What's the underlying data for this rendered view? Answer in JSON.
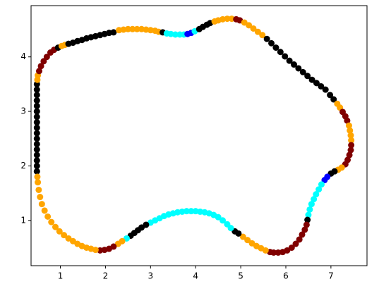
{
  "chart_data": {
    "type": "scatter",
    "xlim": [
      0.35,
      7.8
    ],
    "ylim": [
      0.17,
      4.94
    ],
    "xticks": [
      1,
      2,
      3,
      4,
      5,
      6,
      7
    ],
    "yticks": [
      1,
      2,
      3,
      4
    ],
    "series": [
      {
        "color": "#000000",
        "x": [
          0.48,
          0.48,
          0.48,
          0.48,
          0.48,
          0.48,
          0.48,
          0.48,
          0.48,
          0.48,
          0.48,
          0.48,
          0.48,
          0.48,
          0.48,
          0.48,
          0.48
        ],
        "values": [
          1.9,
          2.0,
          2.1,
          2.2,
          2.3,
          2.4,
          2.5,
          2.6,
          2.7,
          2.8,
          2.9,
          3.0,
          3.1,
          3.2,
          3.3,
          3.4,
          3.5
        ]
      },
      {
        "color": "#ffa500",
        "x": [
          0.49,
          0.5
        ],
        "values": [
          3.58,
          3.66
        ]
      },
      {
        "color": "#800000",
        "x": [
          0.53,
          0.57,
          0.63,
          0.7,
          0.78,
          0.86
        ],
        "values": [
          3.74,
          3.83,
          3.92,
          4.0,
          4.08,
          4.13
        ]
      },
      {
        "color": "#000000",
        "x": [
          0.95
        ],
        "values": [
          4.17
        ]
      },
      {
        "color": "#ffa500",
        "x": [
          1.03,
          1.1
        ],
        "values": [
          4.2,
          4.22
        ]
      },
      {
        "color": "#000000",
        "x": [
          1.18,
          1.28,
          1.38,
          1.48,
          1.58,
          1.68,
          1.78,
          1.88,
          1.98,
          2.08,
          2.18
        ],
        "values": [
          4.24,
          4.26,
          4.29,
          4.31,
          4.34,
          4.36,
          4.38,
          4.4,
          4.42,
          4.44,
          4.45
        ]
      },
      {
        "color": "#ffa500",
        "x": [
          2.3,
          2.4,
          2.5,
          2.6,
          2.7,
          2.8,
          2.9,
          3.0,
          3.1,
          3.18
        ],
        "values": [
          4.49,
          4.5,
          4.51,
          4.51,
          4.51,
          4.51,
          4.5,
          4.49,
          4.48,
          4.46
        ]
      },
      {
        "color": "#000000",
        "x": [
          3.27
        ],
        "values": [
          4.45
        ]
      },
      {
        "color": "#00ffff",
        "x": [
          3.36,
          3.45,
          3.55,
          3.65,
          3.74
        ],
        "values": [
          4.43,
          4.42,
          4.41,
          4.41,
          4.41
        ]
      },
      {
        "color": "#0000ff",
        "x": [
          3.82,
          3.9
        ],
        "values": [
          4.42,
          4.44
        ]
      },
      {
        "color": "#00ffff",
        "x": [
          3.98
        ],
        "values": [
          4.47
        ]
      },
      {
        "color": "#000000",
        "x": [
          4.08,
          4.16,
          4.25,
          4.32
        ],
        "values": [
          4.51,
          4.55,
          4.59,
          4.62
        ]
      },
      {
        "color": "#ffa500",
        "x": [
          4.42,
          4.5,
          4.6,
          4.7,
          4.8
        ],
        "values": [
          4.65,
          4.67,
          4.69,
          4.7,
          4.7
        ]
      },
      {
        "color": "#800000",
        "x": [
          4.9,
          4.98
        ],
        "values": [
          4.69,
          4.67
        ]
      },
      {
        "color": "#ffa500",
        "x": [
          5.08,
          5.18,
          5.28,
          5.38,
          5.48
        ],
        "values": [
          4.63,
          4.58,
          4.52,
          4.46,
          4.4
        ]
      },
      {
        "color": "#000000",
        "x": [
          5.58,
          5.68,
          5.78,
          5.88,
          5.98,
          6.08,
          6.18,
          6.28,
          6.38,
          6.48,
          6.58,
          6.68,
          6.78,
          6.88,
          6.98,
          7.06
        ],
        "values": [
          4.33,
          4.25,
          4.17,
          4.09,
          4.01,
          3.93,
          3.86,
          3.79,
          3.72,
          3.65,
          3.58,
          3.52,
          3.46,
          3.4,
          3.3,
          3.22
        ]
      },
      {
        "color": "#ffa500",
        "x": [
          7.14,
          7.2
        ],
        "values": [
          3.14,
          3.07
        ]
      },
      {
        "color": "#800000",
        "x": [
          7.26,
          7.32,
          7.36
        ],
        "values": [
          2.99,
          2.91,
          2.83
        ]
      },
      {
        "color": "#ffa500",
        "x": [
          7.4,
          7.42,
          7.44,
          7.45
        ],
        "values": [
          2.74,
          2.65,
          2.56,
          2.47
        ]
      },
      {
        "color": "#800000",
        "x": [
          7.45,
          7.44,
          7.41,
          7.37,
          7.32
        ],
        "values": [
          2.38,
          2.29,
          2.2,
          2.11,
          2.03
        ]
      },
      {
        "color": "#ffa500",
        "x": [
          7.24,
          7.16
        ],
        "values": [
          1.97,
          1.93
        ]
      },
      {
        "color": "#000000",
        "x": [
          7.08,
          7.0
        ],
        "values": [
          1.9,
          1.86
        ]
      },
      {
        "color": "#0000ff",
        "x": [
          6.92,
          6.86
        ],
        "values": [
          1.8,
          1.74
        ]
      },
      {
        "color": "#00ffff",
        "x": [
          6.79,
          6.73,
          6.67,
          6.62,
          6.57,
          6.53,
          6.5
        ],
        "values": [
          1.66,
          1.57,
          1.48,
          1.39,
          1.3,
          1.2,
          1.1
        ]
      },
      {
        "color": "#000000",
        "x": [
          6.48
        ],
        "values": [
          1.01
        ]
      },
      {
        "color": "#800000",
        "x": [
          6.46,
          6.42,
          6.36,
          6.3,
          6.22,
          6.13,
          6.03,
          5.93,
          5.83,
          5.73,
          5.65
        ],
        "values": [
          0.92,
          0.83,
          0.74,
          0.65,
          0.57,
          0.5,
          0.45,
          0.42,
          0.41,
          0.41,
          0.42
        ]
      },
      {
        "color": "#ffa500",
        "x": [
          5.55,
          5.45,
          5.35,
          5.25,
          5.15,
          5.05
        ],
        "values": [
          0.45,
          0.49,
          0.53,
          0.58,
          0.64,
          0.7
        ]
      },
      {
        "color": "#000000",
        "x": [
          4.95,
          4.87
        ],
        "values": [
          0.76,
          0.8
        ]
      },
      {
        "color": "#00ffff",
        "x": [
          4.78,
          4.7,
          4.6,
          4.5,
          4.4,
          4.3,
          4.2,
          4.1,
          4.0,
          3.9,
          3.8,
          3.7,
          3.6,
          3.5,
          3.4,
          3.3,
          3.2,
          3.1,
          3.0
        ],
        "values": [
          0.86,
          0.93,
          1.0,
          1.06,
          1.1,
          1.13,
          1.15,
          1.16,
          1.17,
          1.17,
          1.17,
          1.16,
          1.15,
          1.13,
          1.11,
          1.08,
          1.04,
          1.0,
          0.96
        ]
      },
      {
        "color": "#000000",
        "x": [
          2.9,
          2.8,
          2.72,
          2.64,
          2.56
        ],
        "values": [
          0.92,
          0.87,
          0.82,
          0.77,
          0.72
        ]
      },
      {
        "color": "#00ffff",
        "x": [
          2.47
        ],
        "values": [
          0.67
        ]
      },
      {
        "color": "#ffa500",
        "x": [
          2.37,
          2.28
        ],
        "values": [
          0.62,
          0.57
        ]
      },
      {
        "color": "#800000",
        "x": [
          2.18,
          2.08,
          1.98,
          1.88
        ],
        "values": [
          0.52,
          0.48,
          0.46,
          0.45
        ]
      },
      {
        "color": "#ffa500",
        "x": [
          1.78,
          1.68,
          1.58,
          1.48,
          1.38,
          1.28,
          1.18,
          1.08,
          0.98,
          0.89,
          0.8,
          0.72,
          0.65,
          0.59,
          0.55,
          0.52,
          0.5,
          0.49
        ],
        "values": [
          0.46,
          0.48,
          0.5,
          0.53,
          0.57,
          0.62,
          0.67,
          0.73,
          0.8,
          0.88,
          0.97,
          1.07,
          1.18,
          1.3,
          1.43,
          1.56,
          1.7,
          1.8
        ]
      }
    ]
  }
}
